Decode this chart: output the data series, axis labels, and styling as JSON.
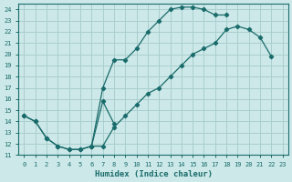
{
  "bg_color": "#cce8e8",
  "line_color": "#1a6b6b",
  "grid_color": "#aacece",
  "xlabel": "Humidex (Indice chaleur)",
  "xlim": [
    -0.5,
    23.5
  ],
  "ylim": [
    11,
    24.5
  ],
  "xticks": [
    0,
    1,
    2,
    3,
    4,
    5,
    6,
    7,
    8,
    9,
    10,
    11,
    12,
    13,
    14,
    15,
    16,
    17,
    18,
    19,
    20,
    21,
    22,
    23
  ],
  "yticks": [
    11,
    12,
    13,
    14,
    15,
    16,
    17,
    18,
    19,
    20,
    21,
    22,
    23,
    24
  ],
  "segments": [
    {
      "x": [
        0,
        1,
        2,
        3,
        4,
        5,
        6,
        7,
        8,
        9,
        10,
        11,
        12,
        13,
        14,
        15,
        16,
        17,
        18
      ],
      "y": [
        14.5,
        14.0,
        12.5,
        11.8,
        11.5,
        11.5,
        11.8,
        17.0,
        19.5,
        19.5,
        20.5,
        22.0,
        23.0,
        24.0,
        24.2,
        24.2,
        24.0,
        23.5,
        23.5
      ]
    },
    {
      "x": [
        0,
        1,
        2,
        3,
        4,
        5,
        6,
        7,
        8,
        9,
        10,
        11,
        12,
        13,
        14,
        15,
        16,
        17,
        18,
        19,
        20,
        21,
        22
      ],
      "y": [
        14.5,
        14.0,
        12.5,
        11.8,
        11.5,
        11.5,
        11.8,
        11.8,
        13.5,
        14.5,
        15.5,
        16.5,
        17.0,
        18.0,
        19.0,
        20.0,
        20.5,
        21.0,
        22.2,
        22.5,
        22.2,
        21.5,
        19.8
      ]
    },
    {
      "x": [
        6,
        7,
        8
      ],
      "y": [
        11.8,
        15.8,
        13.8
      ]
    }
  ]
}
